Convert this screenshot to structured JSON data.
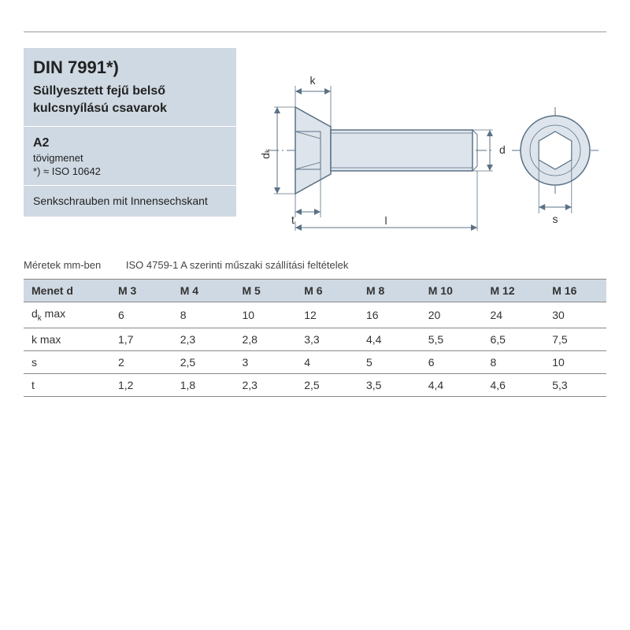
{
  "header": {
    "standard": "DIN 7991*)",
    "subtitle": "Süllyesztett fejű belső kulcsnyílású csavarok",
    "material": "A2",
    "thread_note": "tövigmenet",
    "iso_note": "*) ≈ ISO 10642",
    "german": "Senkschrauben mit Innensechs­kant"
  },
  "diagram": {
    "side": {
      "dk_label": "dₖ",
      "k_label": "k",
      "t_label": "t",
      "l_label": "l",
      "d_label": "d"
    },
    "front": {
      "s_label": "s"
    },
    "colors": {
      "fill": "#dde4eb",
      "stroke": "#5b7186",
      "dim": "#5b7186"
    }
  },
  "table": {
    "caption_left": "Méretek mm-ben",
    "caption_right": "ISO 4759-1 A szerinti műszaki szállítási feltételek",
    "header_label": "Menet d",
    "columns": [
      "M 3",
      "M 4",
      "M 5",
      "M 6",
      "M 8",
      "M 10",
      "M 12",
      "M 16"
    ],
    "rows": [
      {
        "label": "dₖ max",
        "values": [
          "6",
          "8",
          "10",
          "12",
          "16",
          "20",
          "24",
          "30"
        ]
      },
      {
        "label": "k max",
        "values": [
          "1,7",
          "2,3",
          "2,8",
          "3,3",
          "4,4",
          "5,5",
          "6,5",
          "7,5"
        ]
      },
      {
        "label": "s",
        "values": [
          "2",
          "2,5",
          "3",
          "4",
          "5",
          "6",
          "8",
          "10"
        ]
      },
      {
        "label": "t",
        "values": [
          "1,2",
          "1,8",
          "2,3",
          "2,5",
          "3,5",
          "4,4",
          "4,6",
          "5,3"
        ]
      }
    ]
  }
}
